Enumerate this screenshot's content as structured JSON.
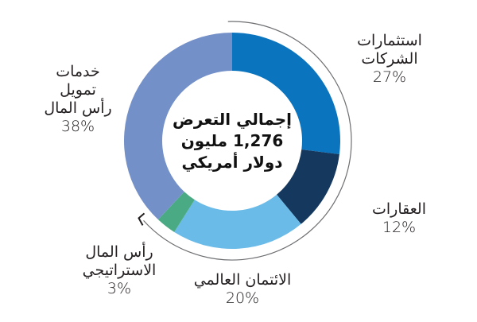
{
  "chart_data": {
    "type": "pie",
    "subtype": "donut",
    "title": "إجمالي التعرض 1,276 مليون دولار أمريكي",
    "center_label": {
      "line1": "إجمالي التعرض",
      "line2": "1,276 مليون",
      "line3": "دولار أمريكي"
    },
    "total": 1276,
    "unit": "مليون دولار أمريكي",
    "slices": [
      {
        "label": "استثمارات الشركات",
        "value": 27,
        "pct_label": "27%",
        "color": "#0a75be"
      },
      {
        "label": "العقارات",
        "value": 12,
        "pct_label": "12%",
        "color": "#15385f"
      },
      {
        "label": "الائتمان العالمي",
        "value": 20,
        "pct_label": "20%",
        "color": "#6bbbe8"
      },
      {
        "label": "رأس المال الاستراتيجي",
        "value": 3,
        "pct_label": "3%",
        "color": "#4aaa84"
      },
      {
        "label": "خدمات تمويل رأس المال",
        "value": 38,
        "pct_label": "38%",
        "color": "#7490c8"
      }
    ],
    "start_angle_deg": 0,
    "direction": "clockwise",
    "annotations": [
      "curved arrow arc spanning slices from 27% around to 3%"
    ]
  },
  "labels": {
    "corporate": {
      "line1": "استثمارات",
      "line2": "الشركات",
      "pct": "27%"
    },
    "real_estate": {
      "line1": "العقارات",
      "pct": "12%"
    },
    "global_credit": {
      "line1": "الائتمان العالمي",
      "pct": "20%"
    },
    "strategic": {
      "line1": "رأس المال",
      "line2": "الاستراتيجي",
      "pct": "3%"
    },
    "capital_finance": {
      "line1": "خدمات",
      "line2": "تمويل",
      "line3": "رأس المال",
      "pct": "38%"
    }
  }
}
